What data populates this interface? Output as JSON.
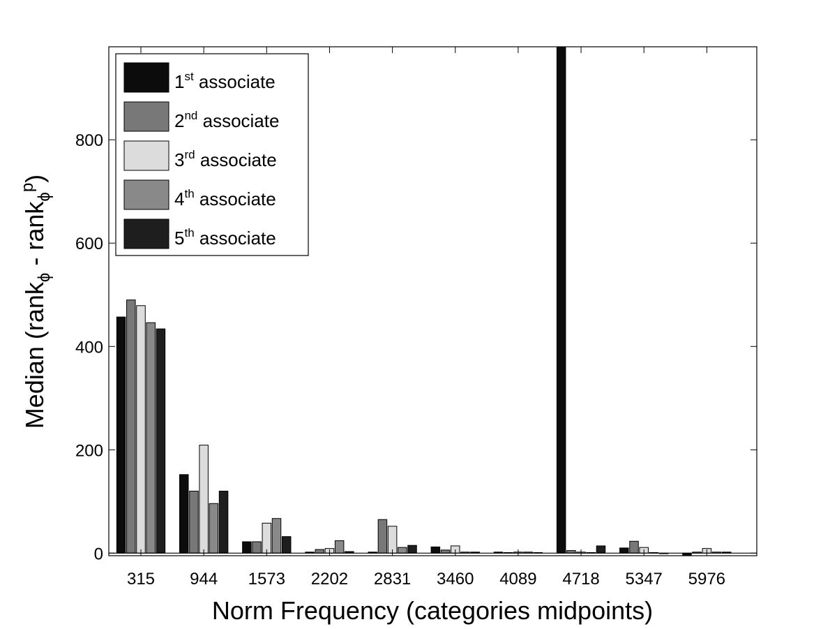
{
  "chart_data": {
    "type": "bar",
    "title": "",
    "xlabel": "Norm Frequency (categories midpoints)",
    "ylabel": {
      "main": "Median (rank",
      "sub1": "ϕ",
      "mid": " - rank",
      "sub2": "ϕ",
      "sup2": "p",
      "close": ")"
    },
    "categories": [
      "315",
      "944",
      "1573",
      "2202",
      "2831",
      "3460",
      "4089",
      "4718",
      "5347",
      "5976"
    ],
    "ylim": [
      -5,
      980
    ],
    "yticks": [
      0,
      200,
      400,
      600,
      800
    ],
    "grid": false,
    "legend_position": "top-left",
    "series": [
      {
        "name": "1st associate",
        "ordinal": "1",
        "suffix": "st",
        "word": " associate",
        "color": "#0c0c0c",
        "values": [
          457,
          152,
          22,
          2,
          2,
          12,
          2,
          990,
          10,
          -6
        ]
      },
      {
        "name": "2nd associate",
        "ordinal": "2",
        "suffix": "nd",
        "word": " associate",
        "color": "#787878",
        "values": [
          490,
          120,
          22,
          7,
          65,
          6,
          1,
          5,
          23,
          2
        ]
      },
      {
        "name": "3rd associate",
        "ordinal": "3",
        "suffix": "rd",
        "word": " associate",
        "color": "#dcdcdc",
        "values": [
          479,
          209,
          58,
          9,
          52,
          14,
          2,
          2,
          11,
          9
        ]
      },
      {
        "name": "4th associate",
        "ordinal": "4",
        "suffix": "th",
        "word": " associate",
        "color": "#898989",
        "values": [
          446,
          96,
          67,
          24,
          11,
          2,
          2,
          1,
          1,
          2
        ]
      },
      {
        "name": "5th associate",
        "ordinal": "5",
        "suffix": "th",
        "word": " associate",
        "color": "#1e1e1e",
        "values": [
          434,
          120,
          32,
          3,
          15,
          2,
          1,
          14,
          0,
          2
        ]
      }
    ]
  }
}
